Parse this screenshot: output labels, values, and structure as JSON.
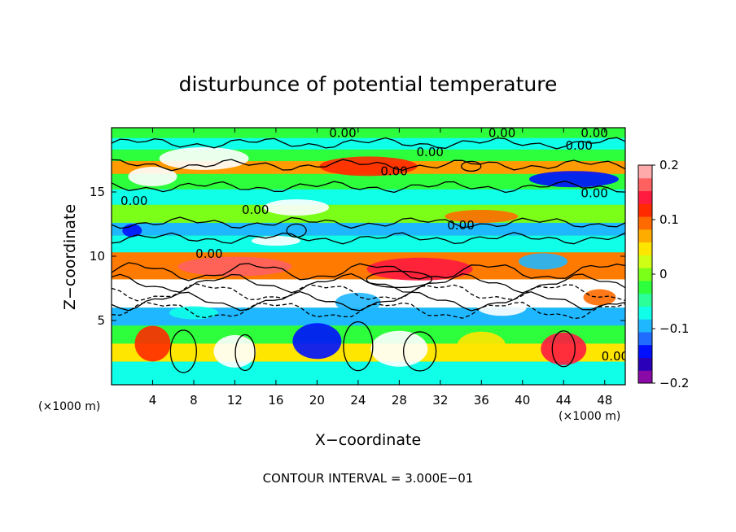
{
  "chart_data": {
    "type": "heatmap",
    "title": "disturbunce of potential temperature",
    "xlabel": "X−coordinate",
    "ylabel": "Z−coordinate",
    "x_unit": "(×1000 m)",
    "y_unit": "(×1000 m)",
    "xlim": [
      0,
      50
    ],
    "ylim": [
      0,
      20
    ],
    "x_ticks": [
      4,
      8,
      12,
      16,
      20,
      24,
      28,
      32,
      36,
      40,
      44,
      48
    ],
    "x_tick_labels": [
      "4",
      "8",
      "12",
      "16",
      "20",
      "24",
      "28",
      "32",
      "36",
      "40",
      "44",
      "48"
    ],
    "y_ticks": [
      5,
      10,
      15
    ],
    "y_tick_labels": [
      "5",
      "10",
      "15"
    ],
    "colorbar": {
      "range": [
        -0.2,
        0.2
      ],
      "ticks": [
        0.2,
        0.1,
        0,
        -0.1,
        -0.2
      ],
      "tick_labels": [
        "0.2",
        "0.1",
        "0",
        "−0.1",
        "−0.2"
      ],
      "colors": [
        "#8a0aa8",
        "#2a00b8",
        "#0010ff",
        "#1f6cff",
        "#1fb7ff",
        "#10ffe8",
        "#2bff9a",
        "#2eff3c",
        "#7bff19",
        "#cfff15",
        "#ffe600",
        "#ffac00",
        "#ff6a00",
        "#ff2a00",
        "#ff1a40",
        "#ff6060",
        "#ffaaaa"
      ]
    },
    "contour_interval_note": "CONTOUR INTERVAL = 3.000E−01",
    "contour_labels": [
      {
        "text": "0.00",
        "x": 31,
        "z": 18.1
      },
      {
        "text": "0.00",
        "x": 45.5,
        "z": 18.6
      },
      {
        "text": "0.00",
        "x": 22.5,
        "z": 19.6
      },
      {
        "text": "0.00",
        "x": 38,
        "z": 19.6
      },
      {
        "text": "0.00",
        "x": 47,
        "z": 19.6
      },
      {
        "text": "0.00",
        "x": 27.5,
        "z": 16.6
      },
      {
        "text": "0.00",
        "x": 14,
        "z": 13.6
      },
      {
        "text": "0.00",
        "x": 47,
        "z": 14.9
      },
      {
        "text": "0.00",
        "x": 34,
        "z": 12.4
      },
      {
        "text": "0.00",
        "x": 9.5,
        "z": 10.2
      },
      {
        "text": "0.00",
        "x": 2.2,
        "z": 14.3
      },
      {
        "text": "0.00",
        "x": 49,
        "z": 2.2
      }
    ]
  }
}
